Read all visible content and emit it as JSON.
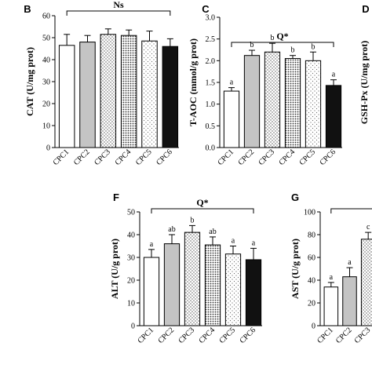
{
  "chart_data": [
    {
      "type": "bar",
      "panel": "B",
      "ylabel": "CAT (U/mg prot)",
      "bracket_label": "Ns",
      "categories": [
        "CPC1",
        "CPC2",
        "CPC3",
        "CPC4",
        "CPC5",
        "CPC6"
      ],
      "values": [
        46.5,
        48,
        51.5,
        51,
        48.5,
        46
      ],
      "errors": [
        5,
        3,
        2.5,
        2.5,
        4.5,
        3.5
      ],
      "ylim": [
        0,
        60
      ],
      "yticks": [
        0,
        10,
        20,
        30,
        40,
        50,
        60
      ]
    },
    {
      "type": "bar",
      "panel": "C",
      "ylabel": "T-AOC (mmol/g prot)",
      "bracket_label": "Q*",
      "categories": [
        "CPC1",
        "CPC2",
        "CPC3",
        "CPC4",
        "CPC5",
        "CPC6"
      ],
      "values": [
        1.3,
        2.12,
        2.2,
        2.05,
        2.0,
        1.43
      ],
      "errors": [
        0.08,
        0.12,
        0.2,
        0.07,
        0.2,
        0.13
      ],
      "sig_labels": [
        "a",
        "b",
        "b",
        "b",
        "b",
        "a"
      ],
      "ylim": [
        0,
        3
      ],
      "yticks": [
        {
          "value": 0,
          "label": "0.0"
        },
        {
          "value": 0.5,
          "label": "0.5"
        },
        {
          "value": 1,
          "label": "1.0"
        },
        {
          "value": 1.5,
          "label": "1.5"
        },
        {
          "value": 2,
          "label": "2.0"
        },
        {
          "value": 2.5,
          "label": "2.5"
        },
        {
          "value": 3,
          "label": "3.0"
        }
      ]
    },
    {
      "type": "bar",
      "panel": "D",
      "ylabel": "GSH-Px (U/mg prot)"
    },
    {
      "type": "bar",
      "panel": "F",
      "ylabel": "ALT (U/g prot)",
      "bracket_label": "Q*",
      "categories": [
        "CPC1",
        "CPC2",
        "CPC3",
        "CPC4",
        "CPC5",
        "CPC6"
      ],
      "values": [
        30,
        36,
        41,
        35.5,
        31.5,
        29
      ],
      "errors": [
        3.5,
        4,
        3,
        3.5,
        3.5,
        5
      ],
      "sig_labels": [
        "a",
        "ab",
        "b",
        "ab",
        "a",
        "a"
      ],
      "ylim": [
        0,
        50
      ],
      "yticks": [
        0,
        10,
        20,
        30,
        40,
        50
      ]
    },
    {
      "type": "bar",
      "panel": "G",
      "ylabel": "AST (U/g prot)",
      "categories": [
        "CPC1",
        "CPC2",
        "CPC3"
      ],
      "values": [
        34,
        43,
        76
      ],
      "errors": [
        4,
        8,
        6
      ],
      "sig_labels": [
        "a",
        "a",
        "c"
      ],
      "ylim": [
        0,
        100
      ],
      "yticks": [
        0,
        20,
        40,
        60,
        80,
        100
      ]
    }
  ]
}
